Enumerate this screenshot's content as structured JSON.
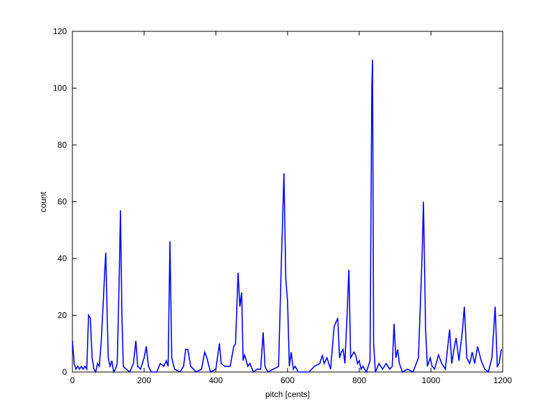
{
  "chart_data": {
    "type": "line",
    "xlabel": "pitch [cents]",
    "ylabel": "count",
    "xlim": [
      0,
      1200
    ],
    "ylim": [
      0,
      120
    ],
    "xticks": [
      0,
      200,
      400,
      600,
      800,
      1000,
      1200
    ],
    "yticks": [
      0,
      20,
      40,
      60,
      80,
      100,
      120
    ],
    "grid": false,
    "series": [
      {
        "color": "#0000ff",
        "x": [
          0,
          5,
          10,
          15,
          20,
          25,
          30,
          35,
          40,
          45,
          50,
          55,
          60,
          65,
          70,
          75,
          80,
          85,
          90,
          93,
          97,
          100,
          105,
          110,
          115,
          120,
          125,
          130,
          134,
          138,
          142,
          150,
          160,
          170,
          177,
          182,
          190,
          200,
          206,
          212,
          220,
          235,
          245,
          255,
          262,
          267,
          272,
          277,
          285,
          300,
          310,
          316,
          322,
          330,
          345,
          360,
          369,
          375,
          385,
          400,
          410,
          415,
          425,
          440,
          450,
          455,
          462,
          467,
          472,
          476,
          480,
          485,
          489,
          495,
          505,
          515,
          525,
          532,
          537,
          545,
          560,
          575,
          583,
          590,
          595,
          600,
          605,
          610,
          616,
          621,
          630,
          645,
          660,
          675,
          690,
          697,
          702,
          710,
          720,
          730,
          740,
          745,
          750,
          755,
          760,
          766,
          771,
          776,
          785,
          790,
          795,
          800,
          805,
          810,
          820,
          830,
          835,
          837,
          840,
          845,
          855,
          865,
          875,
          885,
          892,
          897,
          902,
          907,
          912,
          920,
          935,
          950,
          965,
          975,
          979,
          985,
          990,
          998,
          1003,
          1010,
          1021,
          1030,
          1040,
          1052,
          1058,
          1064,
          1070,
          1078,
          1088,
          1093,
          1100,
          1108,
          1115,
          1122,
          1130,
          1140,
          1150,
          1160,
          1170,
          1179,
          1185,
          1190,
          1196
        ],
        "values": [
          11,
          3,
          1,
          2,
          1,
          2,
          1,
          2,
          1,
          20,
          19,
          5,
          1,
          0,
          3,
          2,
          10,
          22,
          35,
          42,
          20,
          5,
          2,
          4,
          0,
          1,
          3,
          30,
          57,
          20,
          2,
          1,
          0,
          3,
          11,
          2,
          1,
          5,
          9,
          2,
          0,
          0,
          3,
          2,
          4,
          2,
          46,
          5,
          1,
          0,
          2,
          8,
          8,
          2,
          0,
          1,
          7,
          5,
          0,
          1,
          10,
          3,
          2,
          2,
          9,
          10,
          35,
          23,
          28,
          4,
          6,
          4,
          2,
          3,
          0,
          1,
          1,
          14,
          2,
          0,
          1,
          2,
          40,
          70,
          33,
          25,
          2,
          7,
          1,
          2,
          0,
          0,
          0,
          2,
          3,
          6,
          3,
          5,
          1,
          16,
          19,
          5,
          7,
          8,
          3,
          20,
          36,
          5,
          7,
          6,
          3,
          4,
          1,
          2,
          0,
          4,
          100,
          110,
          10,
          0,
          3,
          1,
          3,
          1,
          2,
          17,
          5,
          8,
          3,
          0,
          1,
          0,
          5,
          40,
          60,
          15,
          2,
          5,
          2,
          1,
          6,
          3,
          1,
          15,
          3,
          8,
          12,
          4,
          15,
          23,
          5,
          3,
          7,
          3,
          9,
          4,
          1,
          0,
          5,
          23,
          2,
          3,
          8
        ]
      }
    ]
  }
}
